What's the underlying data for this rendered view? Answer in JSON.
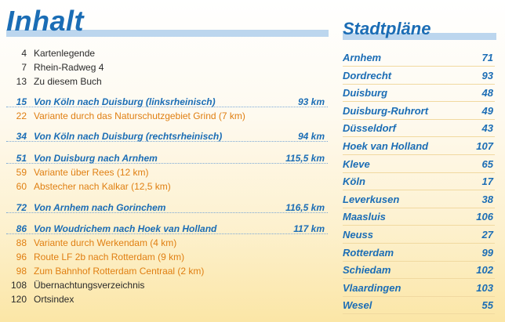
{
  "toc_title": "Inhalt",
  "maps_title": "Stadtpläne",
  "toc": [
    {
      "num": "4",
      "text": "Kartenlegende",
      "dist": "",
      "style": "plain"
    },
    {
      "num": "7",
      "text": "Rhein-Radweg 4",
      "dist": "",
      "style": "plain"
    },
    {
      "num": "13",
      "text": "Zu diesem Buch",
      "dist": "",
      "style": "plain"
    },
    {
      "num": "15",
      "text": "Von Köln nach Duisburg (linksrheinisch)",
      "dist": "93 km",
      "style": "main"
    },
    {
      "num": "22",
      "text": "Variante durch das Naturschutzgebiet Grind (7 km)",
      "dist": "",
      "style": "orange"
    },
    {
      "num": "34",
      "text": "Von Köln nach Duisburg (rechtsrheinisch)",
      "dist": "94 km",
      "style": "main"
    },
    {
      "num": "51",
      "text": "Von Duisburg nach Arnhem",
      "dist": "115,5 km",
      "style": "main"
    },
    {
      "num": "59",
      "text": "Variante über Rees (12 km)",
      "dist": "",
      "style": "orange"
    },
    {
      "num": "60",
      "text": "Abstecher nach Kalkar (12,5 km)",
      "dist": "",
      "style": "orange"
    },
    {
      "num": "72",
      "text": "Von Arnhem nach Gorinchem",
      "dist": "116,5 km",
      "style": "main"
    },
    {
      "num": "86",
      "text": "Von Woudrichem nach Hoek van Holland",
      "dist": "117 km",
      "style": "main"
    },
    {
      "num": "88",
      "text": "Variante durch Werkendam (4 km)",
      "dist": "",
      "style": "orange"
    },
    {
      "num": "96",
      "text": "Route LF 2b nach Rotterdam (9 km)",
      "dist": "",
      "style": "orange"
    },
    {
      "num": "98",
      "text": "Zum Bahnhof Rotterdam Centraal (2 km)",
      "dist": "",
      "style": "orange"
    },
    {
      "num": "108",
      "text": "Übernachtungsverzeichnis",
      "dist": "",
      "style": "plain"
    },
    {
      "num": "120",
      "text": "Ortsindex",
      "dist": "",
      "style": "plain"
    }
  ],
  "cities": [
    {
      "name": "Arnhem",
      "page": "71"
    },
    {
      "name": "Dordrecht",
      "page": "93"
    },
    {
      "name": "Duisburg",
      "page": "48"
    },
    {
      "name": "Duisburg-Ruhrort",
      "page": "49"
    },
    {
      "name": "Düsseldorf",
      "page": "43"
    },
    {
      "name": "Hoek van Holland",
      "page": "107"
    },
    {
      "name": "Kleve",
      "page": "65"
    },
    {
      "name": "Köln",
      "page": "17"
    },
    {
      "name": "Leverkusen",
      "page": "38"
    },
    {
      "name": "Maasluis",
      "page": "106"
    },
    {
      "name": "Neuss",
      "page": "27"
    },
    {
      "name": "Rotterdam",
      "page": "99"
    },
    {
      "name": "Schiedam",
      "page": "102"
    },
    {
      "name": "Vlaardingen",
      "page": "103"
    },
    {
      "name": "Wesel",
      "page": "55"
    }
  ]
}
